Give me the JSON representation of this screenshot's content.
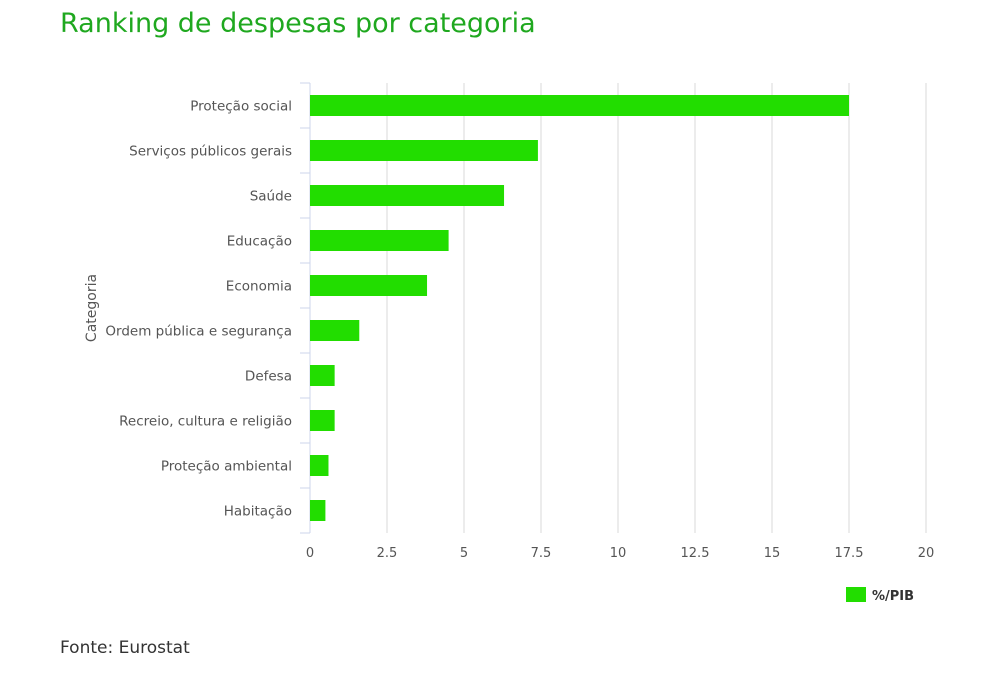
{
  "header": {
    "title": "Ranking de despesas por categoria"
  },
  "footer": {
    "source": "Fonte: Eurostat"
  },
  "chart_data": {
    "type": "bar",
    "orientation": "horizontal",
    "title": "Ranking de despesas por categoria",
    "xlabel": "",
    "ylabel": "Categoria",
    "categories": [
      "Proteção social",
      "Serviços públicos gerais",
      "Saúde",
      "Educação",
      "Economia",
      "Ordem pública e segurança",
      "Defesa",
      "Recreio, cultura e religião",
      "Proteção ambiental",
      "Habitação"
    ],
    "series": [
      {
        "name": "%/PIB",
        "color": "#22dd00",
        "values": [
          17.5,
          7.4,
          6.3,
          4.5,
          3.8,
          1.6,
          0.8,
          0.8,
          0.6,
          0.5
        ]
      }
    ],
    "xlim": [
      0,
      20
    ],
    "xticks": [
      0,
      2.5,
      5,
      7.5,
      10,
      12.5,
      15,
      17.5,
      20
    ],
    "xtick_labels": [
      "0",
      "2.5",
      "5",
      "7.5",
      "10",
      "12.5",
      "15",
      "17.5",
      "20"
    ],
    "grid": true,
    "legend": "bottom-right"
  }
}
